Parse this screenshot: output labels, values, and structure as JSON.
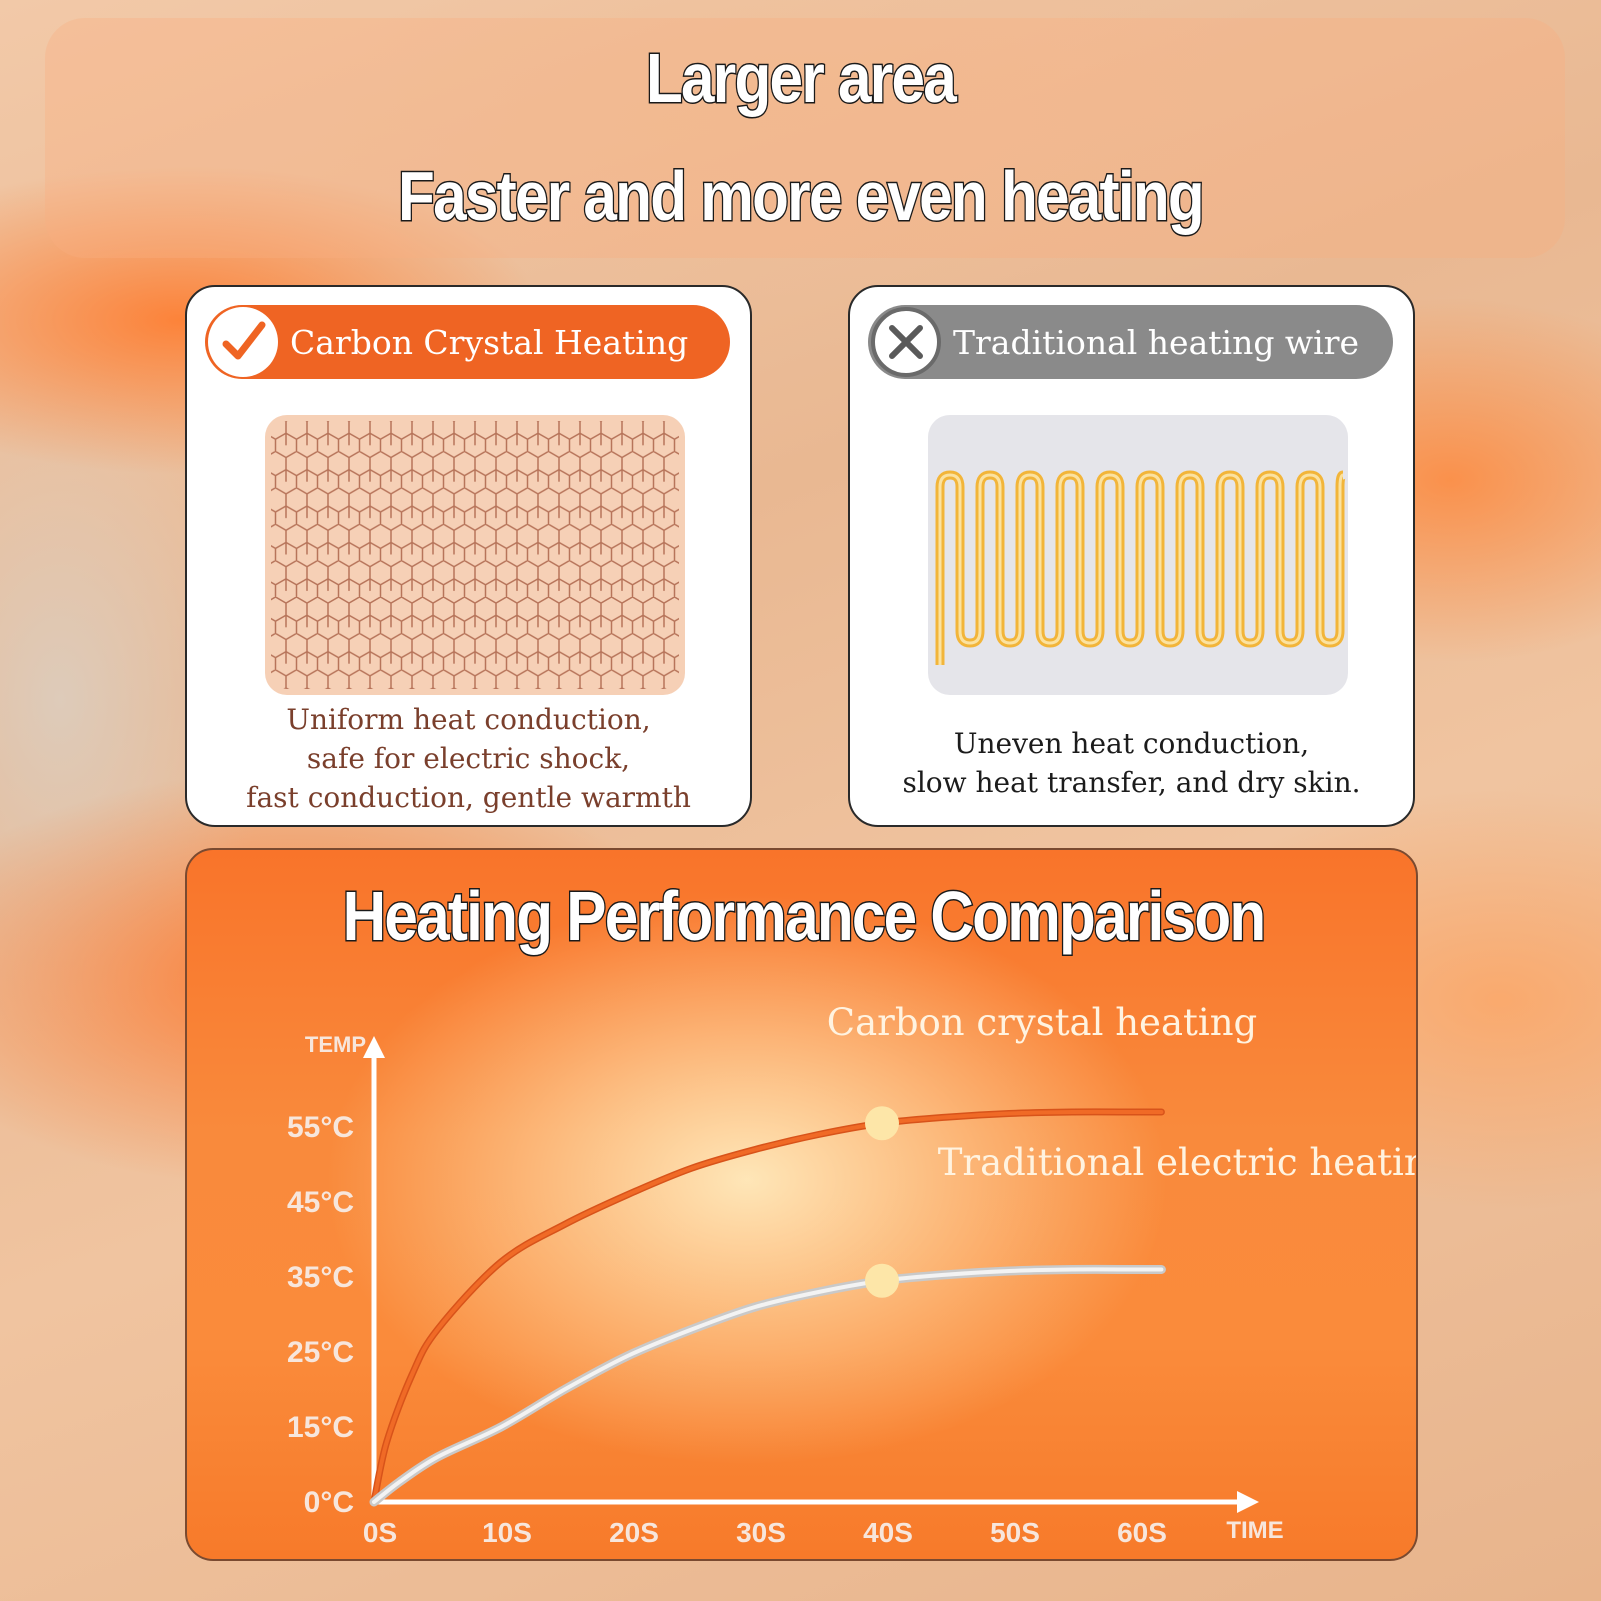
{
  "header": {
    "line1": "Larger area",
    "line2": "Faster and more even heating"
  },
  "cards": {
    "good": {
      "label": "Carbon Crystal Heating",
      "icon": "check-icon",
      "accent": "#ef6423",
      "desc": [
        "Uniform heat conduction,",
        "safe for electric shock,",
        "fast conduction, gentle warmth"
      ]
    },
    "bad": {
      "label": "Traditional heating wire",
      "icon": "x-icon",
      "accent": "#8a8a8a",
      "desc": [
        "Uneven heat conduction,",
        "slow heat transfer, and dry skin."
      ]
    }
  },
  "chart_data": {
    "type": "line",
    "title": "Heating Performance Comparison",
    "xlabel": "TIME",
    "ylabel": "TEMP",
    "x_ticks": [
      "0S",
      "10S",
      "20S",
      "30S",
      "40S",
      "50S",
      "60S"
    ],
    "y_ticks": [
      "0°C",
      "15°C",
      "25°C",
      "35°C",
      "45°C",
      "55°C"
    ],
    "series": [
      {
        "name": "Carbon crystal heating",
        "color": "#f06a26",
        "x": [
          0,
          1,
          3,
          5,
          10,
          15,
          20,
          25,
          30,
          35,
          40,
          45,
          50,
          55,
          60,
          62
        ],
        "y": [
          0,
          12,
          22,
          28,
          37,
          42,
          46,
          49.5,
          52,
          54,
          55.5,
          56.3,
          56.8,
          57,
          57,
          57
        ],
        "marker": [
          40,
          55.5
        ]
      },
      {
        "name": "Traditional electric heating wire",
        "color": "#f3f3f3",
        "x": [
          0,
          2,
          5,
          10,
          15,
          20,
          25,
          30,
          35,
          40,
          45,
          50,
          55,
          60,
          62
        ],
        "y": [
          0,
          4,
          9,
          15,
          20,
          24.5,
          28,
          31,
          33,
          34.5,
          35.3,
          35.8,
          36,
          36,
          36
        ],
        "marker": [
          40,
          34.5
        ]
      }
    ]
  }
}
